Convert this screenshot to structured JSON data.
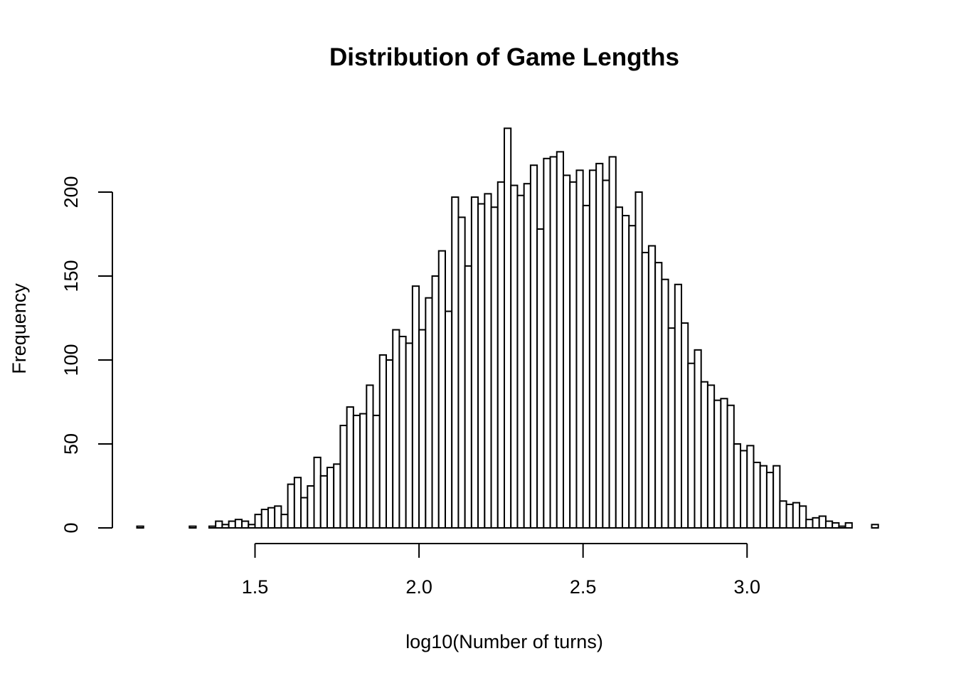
{
  "chart_data": {
    "type": "bar",
    "title": "Distribution of Game Lengths",
    "xlabel": "log10(Number of turns)",
    "ylabel": "Frequency",
    "bin_start": 1.14,
    "bin_width": 0.02,
    "values": [
      1,
      0,
      0,
      0,
      0,
      0,
      0,
      0,
      1,
      0,
      0,
      1,
      4,
      2,
      4,
      5,
      4,
      2,
      8,
      11,
      12,
      13,
      8,
      26,
      30,
      18,
      25,
      42,
      31,
      36,
      38,
      61,
      72,
      67,
      68,
      85,
      67,
      103,
      100,
      118,
      114,
      110,
      144,
      118,
      137,
      150,
      165,
      129,
      197,
      185,
      156,
      197,
      193,
      199,
      191,
      206,
      238,
      204,
      198,
      205,
      216,
      178,
      220,
      221,
      224,
      210,
      206,
      213,
      192,
      213,
      217,
      207,
      221,
      191,
      186,
      180,
      200,
      164,
      168,
      158,
      148,
      119,
      145,
      122,
      98,
      106,
      87,
      85,
      76,
      77,
      73,
      50,
      46,
      49,
      39,
      37,
      33,
      37,
      16,
      14,
      15,
      13,
      5,
      6,
      7,
      4,
      3,
      1,
      3,
      0,
      0,
      0,
      2
    ],
    "xticks": [
      {
        "value": 1.5,
        "label": "1.5"
      },
      {
        "value": 2.0,
        "label": "2.0"
      },
      {
        "value": 2.5,
        "label": "2.5"
      },
      {
        "value": 3.0,
        "label": "3.0"
      }
    ],
    "yticks": [
      {
        "value": 0,
        "label": "0"
      },
      {
        "value": 50,
        "label": "50"
      },
      {
        "value": 100,
        "label": "100"
      },
      {
        "value": 150,
        "label": "150"
      },
      {
        "value": 200,
        "label": "200"
      }
    ],
    "xlim": [
      1.0652,
      3.4548
    ],
    "ylim": [
      0,
      238
    ],
    "grid": false,
    "colors": {
      "bar_fill": "#ffffff",
      "bar_stroke": "#000000"
    }
  }
}
